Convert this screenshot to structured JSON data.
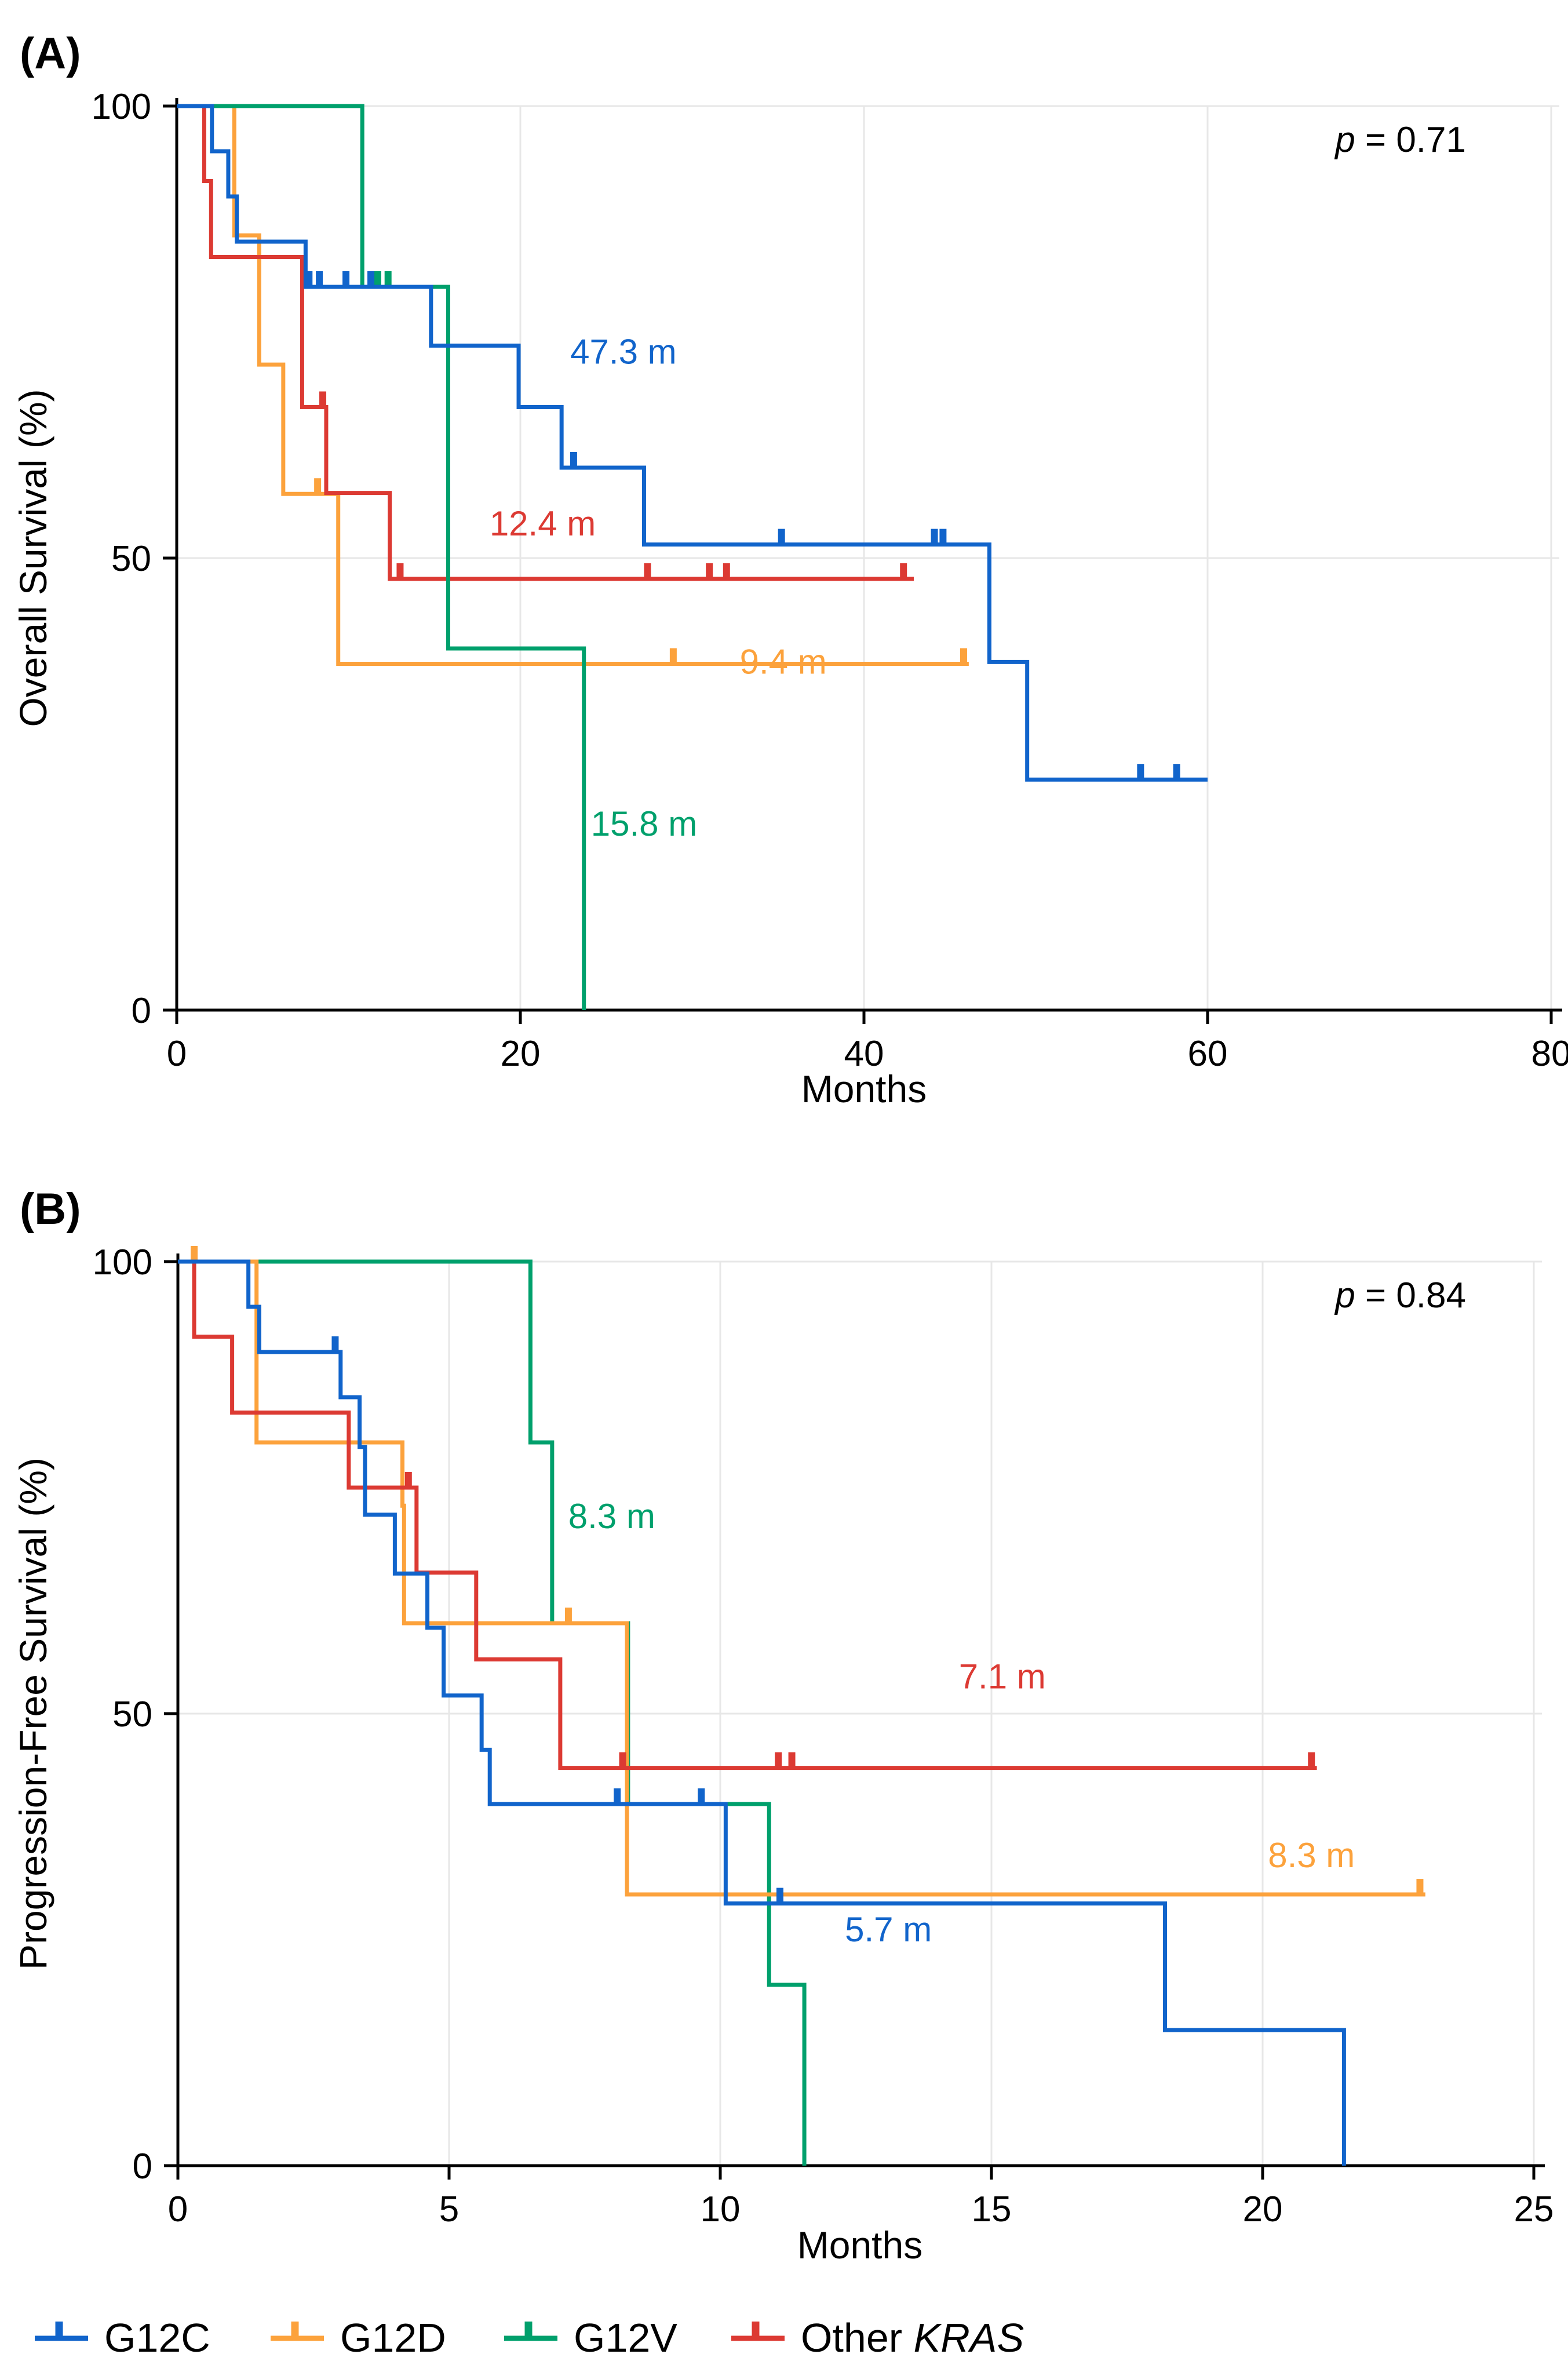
{
  "colors": {
    "blue": "#1164CB",
    "orange": "#FCA23C",
    "green": "#00A06C",
    "red": "#DC3A33",
    "grid": "#E7E7E7",
    "axis": "#000000",
    "text": "#000000"
  },
  "legend": {
    "items": [
      {
        "color": "blue",
        "label": "G12C",
        "label_italic": ""
      },
      {
        "color": "orange",
        "label": "G12D",
        "label_italic": ""
      },
      {
        "color": "green",
        "label": "G12V",
        "label_italic": ""
      },
      {
        "color": "red",
        "label": "Other",
        "label_italic": "KRAS"
      }
    ]
  },
  "chart_data": [
    {
      "id": "A",
      "type": "line",
      "subtype": "kaplan_meier_step",
      "panel_label": "(A)",
      "ylabel": "Overall Survival (%)",
      "xlabel": "Months",
      "p_value": {
        "italic": "p",
        "rest": " = 0.71"
      },
      "xlim": [
        0,
        80
      ],
      "xticks": [
        0,
        20,
        40,
        60,
        80
      ],
      "ylim": [
        0,
        100
      ],
      "yticks": [
        0,
        50,
        100
      ],
      "grid": true,
      "legend_position": "bottom",
      "draw_order": [
        "G12D",
        "Other KRAS",
        "G12V",
        "G12C"
      ],
      "series": [
        {
          "name": "G12C",
          "color": "blue",
          "median_months": 47.3,
          "steps": [
            [
              0,
              100
            ],
            [
              2.05,
              95
            ],
            [
              3.0,
              90
            ],
            [
              3.5,
              85
            ],
            [
              7.5,
              80
            ],
            [
              14.8,
              73.5
            ],
            [
              19.9,
              66.7
            ],
            [
              22.4,
              60
            ],
            [
              27.2,
              51.5
            ],
            [
              47.3,
              38.5
            ],
            [
              49.5,
              25.5
            ]
          ],
          "end": 60,
          "censors": [
            [
              7.7,
              80
            ],
            [
              8.3,
              80
            ],
            [
              9.85,
              80
            ],
            [
              11.3,
              80
            ],
            [
              23.1,
              60
            ],
            [
              35.2,
              51.5
            ],
            [
              44.1,
              51.5
            ],
            [
              44.6,
              51.5
            ],
            [
              56.1,
              25.5
            ],
            [
              58.2,
              25.5
            ]
          ],
          "label": {
            "text": "47.3 m",
            "x": 26,
            "y": 71.5
          }
        },
        {
          "name": "G12D",
          "color": "orange",
          "median_months": 9.4,
          "steps": [
            [
              0,
              100
            ],
            [
              3.35,
              85.7
            ],
            [
              4.8,
              71.4
            ],
            [
              6.2,
              57.1
            ],
            [
              9.4,
              38.3
            ]
          ],
          "end": 46.1,
          "censors": [
            [
              8.2,
              57.1
            ],
            [
              28.9,
              38.3
            ],
            [
              45.8,
              38.3
            ]
          ],
          "label": {
            "text": "9.4 m",
            "x": 35.3,
            "y": 37.2
          }
        },
        {
          "name": "G12V",
          "color": "green",
          "median_months": 15.8,
          "steps": [
            [
              0,
              100
            ],
            [
              10.8,
              80
            ],
            [
              15.8,
              40
            ],
            [
              23.7,
              0
            ]
          ],
          "censors": [
            [
              11.7,
              80
            ],
            [
              12.3,
              80
            ]
          ],
          "label": {
            "text": "15.8 m",
            "x": 27.2,
            "y": 19.3
          }
        },
        {
          "name": "Other KRAS",
          "color": "red",
          "median_months": 12.4,
          "steps": [
            [
              0,
              100
            ],
            [
              1.6,
              91.7
            ],
            [
              2.0,
              83.3
            ],
            [
              7.3,
              66.7
            ],
            [
              8.7,
              57.2
            ],
            [
              12.4,
              47.7
            ]
          ],
          "end": 42.9,
          "censors": [
            [
              8.5,
              66.7
            ],
            [
              13.0,
              47.7
            ],
            [
              27.4,
              47.7
            ],
            [
              31.0,
              47.7
            ],
            [
              32.0,
              47.7
            ],
            [
              42.3,
              47.7
            ]
          ],
          "label": {
            "text": "12.4 m",
            "x": 21.3,
            "y": 52.5
          }
        }
      ]
    },
    {
      "id": "B",
      "type": "line",
      "subtype": "kaplan_meier_step",
      "panel_label": "(B)",
      "ylabel": "Progression-Free Survival (%)",
      "xlabel": "Months",
      "p_value": {
        "italic": "p",
        "rest": " = 0.84"
      },
      "xlim": [
        0,
        25
      ],
      "xticks": [
        0,
        5,
        10,
        15,
        20,
        25
      ],
      "ylim": [
        0,
        100
      ],
      "yticks": [
        0,
        50,
        100
      ],
      "grid": true,
      "legend_position": "bottom",
      "draw_order": [
        "G12V",
        "G12D",
        "Other KRAS",
        "G12C"
      ],
      "series": [
        {
          "name": "G12C",
          "color": "blue",
          "median_months": 5.7,
          "steps": [
            [
              0,
              100
            ],
            [
              1.3,
              95
            ],
            [
              1.5,
              90
            ],
            [
              3.0,
              85
            ],
            [
              3.35,
              79.5
            ],
            [
              3.45,
              72
            ],
            [
              4.0,
              65.5
            ],
            [
              4.6,
              59.5
            ],
            [
              4.9,
              52
            ],
            [
              5.6,
              46
            ],
            [
              5.75,
              40
            ],
            [
              10.1,
              29
            ],
            [
              18.2,
              15
            ],
            [
              21.5,
              0
            ]
          ],
          "censors": [
            [
              2.9,
              90
            ],
            [
              8.1,
              40
            ],
            [
              9.65,
              40
            ],
            [
              11.1,
              29
            ]
          ],
          "label": {
            "text": "5.7 m",
            "x": 13.1,
            "y": 24.8
          }
        },
        {
          "name": "G12D",
          "color": "orange",
          "median_months": 8.3,
          "steps": [
            [
              0,
              100
            ],
            [
              1.45,
              80
            ],
            [
              4.14,
              73
            ],
            [
              4.17,
              60
            ],
            [
              8.28,
              30
            ]
          ],
          "end": 23.0,
          "censors": [
            [
              0.3,
              100
            ],
            [
              7.2,
              60
            ],
            [
              22.9,
              30
            ]
          ],
          "label": {
            "text": "8.3 m",
            "x": 20.9,
            "y": 33
          }
        },
        {
          "name": "G12V",
          "color": "green",
          "median_months": 8.3,
          "steps": [
            [
              0,
              100
            ],
            [
              6.5,
              80
            ],
            [
              6.9,
              60
            ],
            [
              8.3,
              40
            ],
            [
              10.9,
              20
            ],
            [
              11.55,
              0
            ]
          ],
          "censors": [],
          "label": {
            "text": "8.3 m",
            "x": 8.0,
            "y": 70.5
          }
        },
        {
          "name": "Other KRAS",
          "color": "red",
          "median_months": 7.1,
          "steps": [
            [
              0,
              100
            ],
            [
              0.3,
              91.7
            ],
            [
              1.0,
              83.3
            ],
            [
              3.15,
              75
            ],
            [
              4.4,
              65.6
            ],
            [
              5.5,
              56
            ],
            [
              7.05,
              44
            ]
          ],
          "end": 21.0,
          "censors": [
            [
              4.25,
              75
            ],
            [
              8.2,
              44
            ],
            [
              11.07,
              44
            ],
            [
              11.32,
              44
            ],
            [
              20.9,
              44
            ]
          ],
          "label": {
            "text": "7.1 m",
            "x": 15.2,
            "y": 52.8
          }
        }
      ]
    }
  ]
}
